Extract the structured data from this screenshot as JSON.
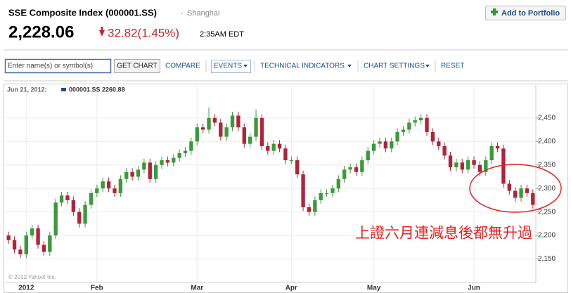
{
  "header": {
    "title": "SSE Composite Index (000001.SS)",
    "separator": "-",
    "exchange": "Shanghai",
    "price": "2,228.06",
    "change": "32.82(1.45%)",
    "time": "2:35AM EDT",
    "add_button": "Add to Portfolio"
  },
  "toolbar": {
    "input_placeholder": "Enter name(s) or symbol(s)",
    "get_chart": "GET CHART",
    "compare": "COMPARE",
    "events": "EVENTS",
    "technical": "TECHNICAL INDICATORS",
    "settings": "CHART SETTINGS",
    "reset": "RESET"
  },
  "chart_data": {
    "type": "candlestick",
    "legend_date": "Jun 21, 2012:",
    "legend_text": "000001.SS 2260.88",
    "annotation": "上證六月連減息後都無升過",
    "copyright": "© 2012 Yahoo! Inc.",
    "up_color": "#3b9a3b",
    "down_color": "#b0243a",
    "legend_color": "#1f4e8c",
    "ylim": [
      2100,
      2520
    ],
    "yticks": [
      {
        "value": 2150,
        "label": "2,150"
      },
      {
        "value": 2200,
        "label": "2,200"
      },
      {
        "value": 2250,
        "label": "2,250"
      },
      {
        "value": 2300,
        "label": "2,300"
      },
      {
        "value": 2350,
        "label": "2,350"
      },
      {
        "value": 2400,
        "label": "2,400"
      },
      {
        "value": 2450,
        "label": "2,450"
      }
    ],
    "categories": [
      null,
      null,
      null,
      "2012",
      null,
      null,
      null,
      null,
      null,
      null,
      null,
      null,
      null,
      null,
      null,
      "Feb",
      null,
      null,
      null,
      null,
      null,
      null,
      null,
      null,
      null,
      null,
      null,
      null,
      null,
      null,
      null,
      null,
      "Mar",
      null,
      null,
      null,
      null,
      null,
      null,
      null,
      null,
      null,
      null,
      null,
      null,
      null,
      null,
      null,
      "Apr",
      null,
      null,
      null,
      null,
      null,
      null,
      null,
      null,
      null,
      null,
      null,
      null,
      null,
      "May",
      null,
      null,
      null,
      null,
      null,
      null,
      null,
      null,
      null,
      null,
      null,
      null,
      null,
      null,
      null,
      null,
      "Jun",
      null,
      null,
      null,
      null,
      null,
      null,
      null,
      null,
      null,
      null
    ],
    "open": [
      2200,
      2190,
      2170,
      2160,
      2200,
      2215,
      2180,
      2165,
      2200,
      2270,
      2285,
      2275,
      2250,
      2225,
      2265,
      2290,
      2300,
      2315,
      2300,
      2290,
      2320,
      2335,
      2325,
      2340,
      2355,
      2320,
      2350,
      2360,
      2355,
      2365,
      2375,
      2380,
      2400,
      2430,
      2425,
      2450,
      2440,
      2410,
      2430,
      2455,
      2430,
      2395,
      2410,
      2450,
      2390,
      2380,
      2395,
      2385,
      2360,
      2360,
      2330,
      2260,
      2250,
      2275,
      2290,
      2290,
      2300,
      2320,
      2340,
      2345,
      2335,
      2360,
      2380,
      2395,
      2400,
      2385,
      2400,
      2420,
      2425,
      2440,
      2445,
      2450,
      2420,
      2400,
      2390,
      2370,
      2345,
      2355,
      2340,
      2360,
      2350,
      2335,
      2360,
      2390,
      2385,
      2310,
      2295,
      2280,
      2300,
      2290
    ],
    "high": [
      2208,
      2198,
      2178,
      2208,
      2223,
      2223,
      2188,
      2208,
      2278,
      2293,
      2293,
      2283,
      2258,
      2273,
      2298,
      2308,
      2323,
      2323,
      2308,
      2328,
      2343,
      2343,
      2348,
      2363,
      2363,
      2358,
      2368,
      2368,
      2373,
      2383,
      2388,
      2408,
      2438,
      2438,
      2472,
      2458,
      2448,
      2438,
      2463,
      2463,
      2438,
      2418,
      2468,
      2458,
      2398,
      2403,
      2403,
      2393,
      2368,
      2368,
      2338,
      2268,
      2283,
      2298,
      2298,
      2308,
      2328,
      2348,
      2353,
      2353,
      2368,
      2388,
      2403,
      2408,
      2408,
      2408,
      2428,
      2433,
      2448,
      2453,
      2458,
      2458,
      2428,
      2408,
      2398,
      2378,
      2363,
      2363,
      2368,
      2368,
      2358,
      2368,
      2398,
      2398,
      2393,
      2318,
      2303,
      2308,
      2308,
      2298
    ],
    "low": [
      2182,
      2162,
      2152,
      2152,
      2192,
      2172,
      2157,
      2157,
      2192,
      2262,
      2267,
      2242,
      2217,
      2217,
      2257,
      2282,
      2292,
      2292,
      2282,
      2282,
      2312,
      2317,
      2317,
      2332,
      2312,
      2312,
      2342,
      2347,
      2347,
      2357,
      2367,
      2372,
      2392,
      2417,
      2417,
      2432,
      2402,
      2402,
      2422,
      2422,
      2387,
      2387,
      2402,
      2382,
      2372,
      2372,
      2377,
      2352,
      2352,
      2322,
      2252,
      2242,
      2242,
      2267,
      2282,
      2282,
      2292,
      2312,
      2332,
      2327,
      2327,
      2352,
      2372,
      2387,
      2377,
      2377,
      2392,
      2412,
      2417,
      2432,
      2437,
      2412,
      2392,
      2382,
      2362,
      2337,
      2337,
      2332,
      2332,
      2342,
      2327,
      2327,
      2352,
      2377,
      2302,
      2287,
      2272,
      2272,
      2282,
      2257
    ],
    "close": [
      2190,
      2170,
      2160,
      2200,
      2215,
      2180,
      2165,
      2200,
      2270,
      2285,
      2275,
      2250,
      2225,
      2265,
      2290,
      2300,
      2315,
      2300,
      2290,
      2320,
      2335,
      2325,
      2340,
      2355,
      2320,
      2350,
      2360,
      2355,
      2365,
      2375,
      2380,
      2400,
      2430,
      2425,
      2450,
      2440,
      2410,
      2430,
      2455,
      2430,
      2395,
      2410,
      2450,
      2390,
      2380,
      2395,
      2385,
      2360,
      2360,
      2330,
      2260,
      2250,
      2275,
      2290,
      2290,
      2300,
      2320,
      2340,
      2345,
      2335,
      2360,
      2380,
      2395,
      2400,
      2385,
      2400,
      2420,
      2425,
      2440,
      2445,
      2450,
      2420,
      2400,
      2390,
      2370,
      2345,
      2355,
      2340,
      2360,
      2350,
      2335,
      2360,
      2390,
      2385,
      2310,
      2295,
      2280,
      2300,
      2290,
      2265
    ]
  }
}
